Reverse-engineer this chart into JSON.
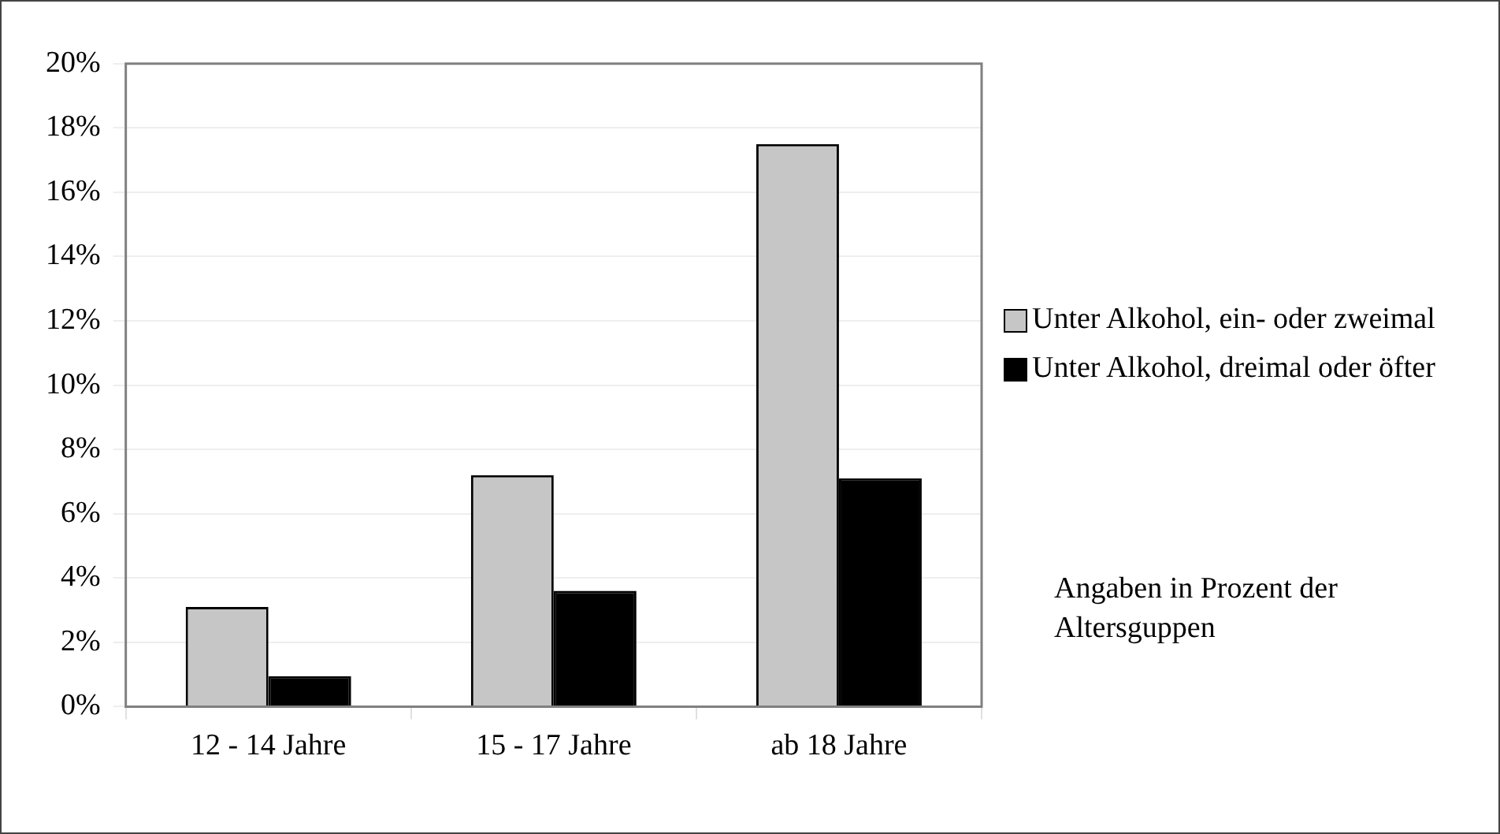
{
  "chart_data": {
    "type": "bar",
    "categories": [
      "12 - 14 Jahre",
      "15 - 17 Jahre",
      "ab 18 Jahre"
    ],
    "series": [
      {
        "name": "Unter Alkohol, ein- oder zweimal",
        "color": "#c6c6c6",
        "values": [
          3.1,
          7.2,
          17.5
        ]
      },
      {
        "name": "Unter Alkohol, dreimal oder öfter",
        "color": "#000000",
        "values": [
          0.95,
          3.6,
          7.1
        ]
      }
    ],
    "ylim": [
      0,
      20
    ],
    "yticks": [
      {
        "value": 0,
        "label": "0%"
      },
      {
        "value": 2,
        "label": "2%"
      },
      {
        "value": 4,
        "label": "4%"
      },
      {
        "value": 6,
        "label": "6%"
      },
      {
        "value": 8,
        "label": "8%"
      },
      {
        "value": 10,
        "label": "10%"
      },
      {
        "value": 12,
        "label": "12%"
      },
      {
        "value": 14,
        "label": "14%"
      },
      {
        "value": 16,
        "label": "16%"
      },
      {
        "value": 18,
        "label": "18%"
      },
      {
        "value": 20,
        "label": "20%"
      }
    ],
    "grid": "y",
    "legend": "right",
    "annotations": [
      "Angaben in Prozent der Altersguppen"
    ]
  }
}
